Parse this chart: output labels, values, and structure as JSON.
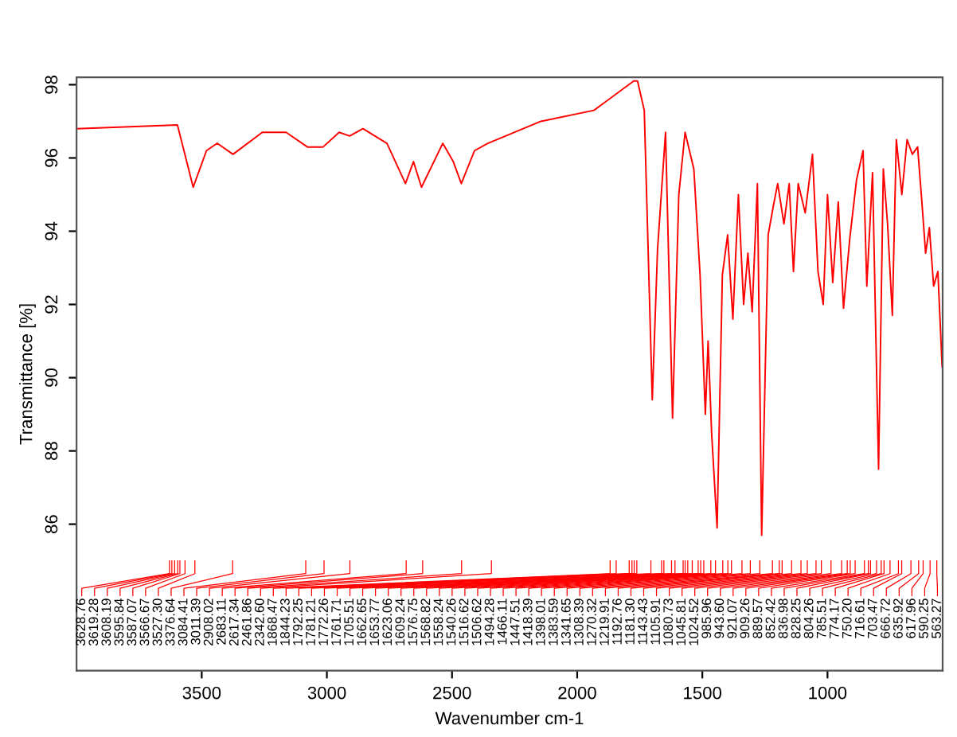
{
  "chart_data": {
    "type": "line",
    "xlabel": "Wavenumber cm-1",
    "ylabel": "Transmittance [%]",
    "xlim": [
      4000,
      540
    ],
    "ylim": [
      82,
      98.2
    ],
    "xticks": [
      3500,
      3000,
      2500,
      2000,
      1500,
      1000
    ],
    "yticks": [
      86,
      88,
      90,
      92,
      94,
      96,
      98
    ],
    "grid": false,
    "legend": false,
    "marker": "none",
    "line_style": "solid",
    "x": [
      4000,
      3597,
      3534,
      3481,
      3438,
      3375,
      3258,
      3163,
      3078,
      3015,
      2951,
      2909,
      2856,
      2760,
      2686,
      2654,
      2622,
      2537,
      2495,
      2463,
      2410,
      2357,
      2145,
      1933,
      1774,
      1759,
      1732,
      1700,
      1679,
      1647,
      1619,
      1594,
      1569,
      1534,
      1509,
      1488,
      1477,
      1463,
      1441,
      1420,
      1399,
      1378,
      1356,
      1335,
      1318,
      1301,
      1280,
      1263,
      1237,
      1216,
      1199,
      1174,
      1153,
      1136,
      1117,
      1089,
      1060,
      1038,
      1017,
      1000,
      979,
      957,
      936,
      911,
      884,
      858,
      843,
      820,
      796,
      777,
      760,
      741,
      725,
      703,
      682,
      661,
      640,
      623,
      608,
      593,
      576,
      559,
      542
    ],
    "series": [
      {
        "color": "#ff0000",
        "values": [
          96.8,
          96.9,
          95.2,
          96.2,
          96.4,
          96.1,
          96.7,
          96.7,
          96.3,
          96.3,
          96.7,
          96.6,
          96.8,
          96.4,
          95.3,
          95.9,
          95.2,
          96.4,
          95.9,
          95.3,
          96.2,
          96.4,
          97.0,
          97.3,
          98.1,
          98.1,
          97.3,
          89.4,
          93.5,
          96.7,
          88.9,
          95.0,
          96.7,
          95.7,
          92.8,
          89.0,
          91.0,
          88.5,
          85.9,
          92.8,
          93.9,
          91.6,
          95.0,
          92.0,
          93.4,
          91.8,
          95.3,
          85.7,
          93.9,
          94.7,
          95.3,
          94.2,
          95.3,
          92.9,
          95.3,
          94.5,
          96.1,
          92.9,
          92.0,
          95.0,
          92.6,
          94.8,
          91.9,
          93.8,
          95.4,
          96.2,
          92.5,
          95.6,
          87.5,
          95.7,
          94.2,
          91.7,
          96.5,
          95.0,
          96.5,
          96.1,
          96.3,
          94.8,
          93.4,
          94.1,
          92.5,
          92.9,
          90.3
        ]
      }
    ],
    "annotations": [
      "3628.76",
      "3619.28",
      "3608.19",
      "3595.84",
      "3587.07",
      "3566.67",
      "3527.30",
      "3376.64",
      "3084.41",
      "3011.39",
      "2908.02",
      "2683.11",
      "2617.34",
      "2461.86",
      "2342.60",
      "1868.47",
      "1844.23",
      "1792.25",
      "1781.21",
      "1772.26",
      "1761.71",
      "1705.51",
      "1662.65",
      "1653.77",
      "1623.06",
      "1609.24",
      "1576.75",
      "1568.82",
      "1558.24",
      "1540.26",
      "1516.62",
      "1506.62",
      "1494.28",
      "1466.11",
      "1447.51",
      "1418.39",
      "1398.01",
      "1383.59",
      "1341.65",
      "1308.39",
      "1270.32",
      "1219.91",
      "1192.76",
      "1181.30",
      "1143.43",
      "1105.91",
      "1080.73",
      "1045.81",
      "1024.52",
      "985.96",
      "943.60",
      "921.07",
      "909.26",
      "889.57",
      "852.42",
      "836.98",
      "828.25",
      "804.26",
      "785.51",
      "774.17",
      "750.20",
      "716.61",
      "703.47",
      "666.72",
      "635.92",
      "617.96",
      "590.25",
      "563.27"
    ]
  }
}
